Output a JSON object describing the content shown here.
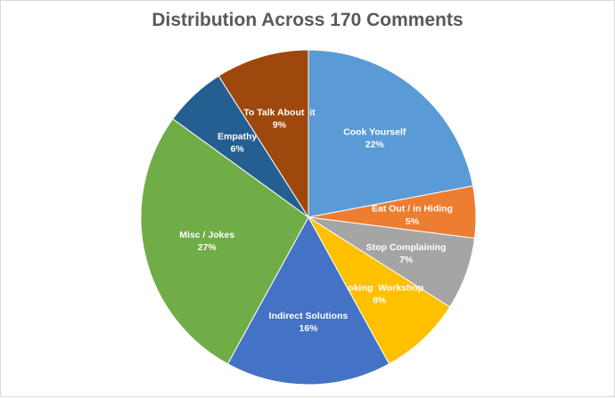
{
  "chart_data": {
    "type": "pie",
    "title": "Distribution Across 170 Comments",
    "categories": [
      "Cook Yourself",
      "Eat Out / in Hiding",
      "Stop Complaining",
      "Cooking  Workshop",
      "Indirect Solutions",
      "Misc / Jokes",
      "Empathy",
      "To Talk About  it"
    ],
    "values": [
      22,
      5,
      7,
      8,
      16,
      27,
      6,
      9
    ],
    "value_labels": [
      "22%",
      "5%",
      "7%",
      "8%",
      "16%",
      "27%",
      "6%",
      "9%"
    ],
    "colors": [
      "#5b9bd5",
      "#ed7d31",
      "#a5a5a5",
      "#ffc000",
      "#4472c4",
      "#70ad47",
      "#255e91",
      "#9e480e"
    ],
    "start_angle_deg": 0,
    "direction": "clockwise",
    "legend": "none",
    "labels_inside": true
  }
}
